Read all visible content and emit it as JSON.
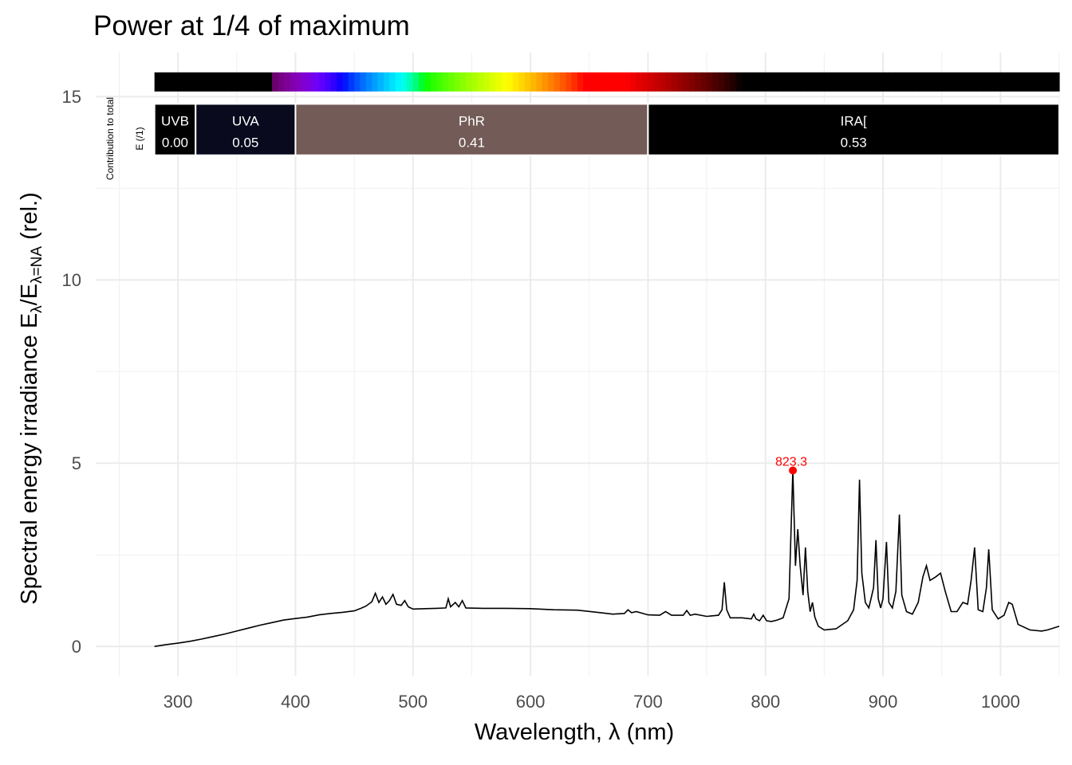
{
  "chart_data": {
    "type": "line",
    "title": "Power at 1/4 of maximum",
    "xlabel": "Wavelength, λ (nm)",
    "ylabel_main": "Spectral energy irradiance  E",
    "ylabel_sub1": "λ",
    "ylabel_mid": "/E",
    "ylabel_sub2": "λ=NA",
    "ylabel_tail": "  (rel.)",
    "xlim": [
      230,
      1050
    ],
    "ylim": [
      -0.8,
      16.2
    ],
    "x_ticks": [
      300,
      400,
      500,
      600,
      700,
      800,
      900,
      1000
    ],
    "x_tick_labels": [
      "300",
      "400",
      "500",
      "600",
      "700",
      "800",
      "900",
      "1000"
    ],
    "y_ticks": [
      0,
      5,
      10,
      15
    ],
    "y_tick_labels": [
      "0",
      "5",
      "10",
      "15"
    ],
    "grid": true,
    "line_color": "#000000",
    "series": [
      {
        "points": [
          [
            280,
            0.0
          ],
          [
            290,
            0.05
          ],
          [
            300,
            0.09
          ],
          [
            310,
            0.14
          ],
          [
            320,
            0.2
          ],
          [
            330,
            0.27
          ],
          [
            340,
            0.34
          ],
          [
            350,
            0.42
          ],
          [
            360,
            0.5
          ],
          [
            370,
            0.58
          ],
          [
            380,
            0.65
          ],
          [
            390,
            0.72
          ],
          [
            400,
            0.76
          ],
          [
            410,
            0.8
          ],
          [
            420,
            0.86
          ],
          [
            430,
            0.9
          ],
          [
            440,
            0.93
          ],
          [
            450,
            0.97
          ],
          [
            455,
            1.03
          ],
          [
            460,
            1.1
          ],
          [
            465,
            1.22
          ],
          [
            468,
            1.45
          ],
          [
            471,
            1.2
          ],
          [
            474,
            1.35
          ],
          [
            477,
            1.15
          ],
          [
            480,
            1.25
          ],
          [
            483,
            1.42
          ],
          [
            486,
            1.15
          ],
          [
            490,
            1.12
          ],
          [
            493,
            1.25
          ],
          [
            496,
            1.08
          ],
          [
            500,
            1.02
          ],
          [
            510,
            1.03
          ],
          [
            520,
            1.04
          ],
          [
            528,
            1.05
          ],
          [
            530,
            1.3
          ],
          [
            532,
            1.08
          ],
          [
            536,
            1.2
          ],
          [
            539,
            1.08
          ],
          [
            542,
            1.25
          ],
          [
            545,
            1.05
          ],
          [
            560,
            1.04
          ],
          [
            580,
            1.04
          ],
          [
            600,
            1.03
          ],
          [
            620,
            1.0
          ],
          [
            640,
            0.99
          ],
          [
            660,
            0.92
          ],
          [
            670,
            0.88
          ],
          [
            680,
            0.9
          ],
          [
            683,
            1.0
          ],
          [
            686,
            0.92
          ],
          [
            690,
            0.95
          ],
          [
            700,
            0.86
          ],
          [
            710,
            0.85
          ],
          [
            715,
            0.95
          ],
          [
            720,
            0.85
          ],
          [
            730,
            0.85
          ],
          [
            733,
            0.98
          ],
          [
            736,
            0.85
          ],
          [
            740,
            0.88
          ],
          [
            750,
            0.82
          ],
          [
            760,
            0.85
          ],
          [
            763,
            1.0
          ],
          [
            765,
            1.75
          ],
          [
            767,
            1.0
          ],
          [
            770,
            0.78
          ],
          [
            780,
            0.78
          ],
          [
            788,
            0.75
          ],
          [
            790,
            0.88
          ],
          [
            792,
            0.75
          ],
          [
            795,
            0.7
          ],
          [
            798,
            0.85
          ],
          [
            801,
            0.7
          ],
          [
            805,
            0.68
          ],
          [
            810,
            0.72
          ],
          [
            815,
            0.78
          ],
          [
            820,
            1.3
          ],
          [
            823.3,
            4.8
          ],
          [
            825.5,
            2.2
          ],
          [
            827.5,
            3.2
          ],
          [
            829.5,
            2.2
          ],
          [
            832,
            1.4
          ],
          [
            834,
            2.7
          ],
          [
            836,
            1.5
          ],
          [
            838,
            0.95
          ],
          [
            840,
            1.2
          ],
          [
            842,
            0.8
          ],
          [
            845,
            0.55
          ],
          [
            850,
            0.45
          ],
          [
            860,
            0.48
          ],
          [
            870,
            0.7
          ],
          [
            875,
            1.0
          ],
          [
            878,
            1.8
          ],
          [
            880,
            4.55
          ],
          [
            882,
            2.0
          ],
          [
            885,
            1.2
          ],
          [
            888,
            1.05
          ],
          [
            892,
            1.6
          ],
          [
            894,
            2.9
          ],
          [
            896,
            1.3
          ],
          [
            898,
            1.05
          ],
          [
            900,
            1.3
          ],
          [
            903,
            2.85
          ],
          [
            905,
            1.2
          ],
          [
            908,
            1.05
          ],
          [
            911,
            1.5
          ],
          [
            914,
            3.6
          ],
          [
            916,
            1.4
          ],
          [
            920,
            0.95
          ],
          [
            925,
            0.88
          ],
          [
            930,
            1.2
          ],
          [
            934,
            1.9
          ],
          [
            937,
            2.2
          ],
          [
            940,
            1.8
          ],
          [
            945,
            1.9
          ],
          [
            949,
            2.0
          ],
          [
            953,
            1.5
          ],
          [
            958,
            0.95
          ],
          [
            963,
            0.95
          ],
          [
            968,
            1.2
          ],
          [
            972,
            1.15
          ],
          [
            975,
            1.8
          ],
          [
            978,
            2.7
          ],
          [
            981,
            1.0
          ],
          [
            985,
            0.95
          ],
          [
            988,
            1.6
          ],
          [
            990,
            2.65
          ],
          [
            993,
            1.0
          ],
          [
            998,
            0.75
          ],
          [
            1003,
            0.85
          ],
          [
            1007,
            1.2
          ],
          [
            1010,
            1.15
          ],
          [
            1015,
            0.6
          ],
          [
            1025,
            0.45
          ],
          [
            1035,
            0.42
          ],
          [
            1040,
            0.45
          ],
          [
            1050,
            0.55
          ]
        ]
      }
    ],
    "peak": {
      "x": 823.3,
      "y": 4.8,
      "label": "823.3",
      "color": "#ff0000"
    },
    "annotation": {
      "side_label_line1": "Contribution  to  total",
      "side_label_line2": "E  (/1)",
      "spectrum_bar_y": 15.4,
      "spectrum_bar_range": [
        280,
        1050
      ],
      "band_y_range": [
        13.4,
        14.8
      ],
      "bands": [
        {
          "name": "UVB",
          "value": "0.00",
          "range": [
            280,
            315
          ],
          "color": "#000000"
        },
        {
          "name": "UVA",
          "value": "0.05",
          "range": [
            315,
            400
          ],
          "color": "#0a0a1e"
        },
        {
          "name": "PhR",
          "value": "0.41",
          "range": [
            400,
            700
          ],
          "color": "#735b57"
        },
        {
          "name": "IRA[",
          "value": "0.53",
          "range": [
            700,
            1050
          ],
          "color": "#000000"
        }
      ]
    }
  }
}
